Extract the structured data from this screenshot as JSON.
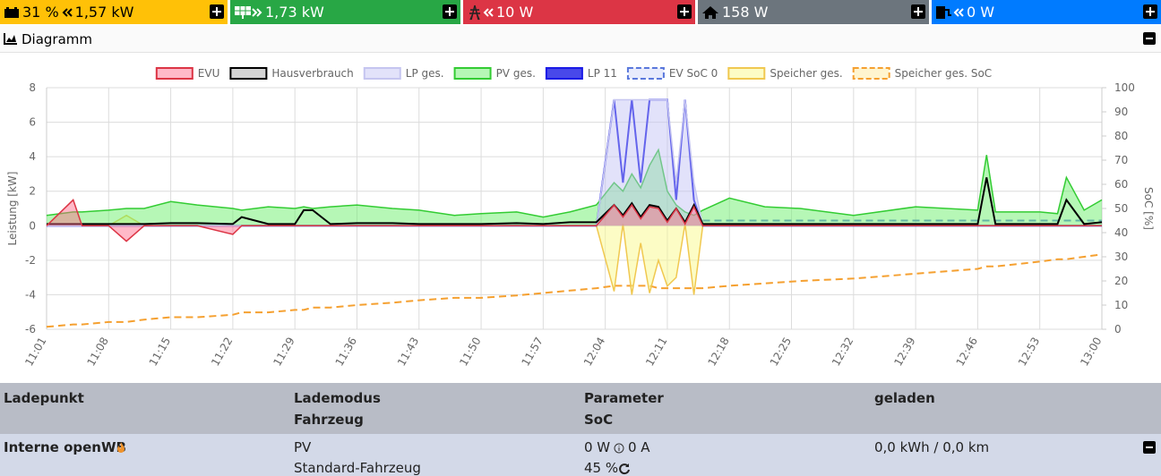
{
  "header": {
    "tiles": [
      {
        "soc": "31 %",
        "power": "1,57 kW"
      },
      {
        "power": "1,73 kW"
      },
      {
        "power": "10 W"
      },
      {
        "power": "158 W"
      },
      {
        "power": "0 W"
      }
    ]
  },
  "panel": {
    "title": "Diagramm"
  },
  "chart_data": {
    "type": "line",
    "ylabel": "Leistung [kW]",
    "y2label": "SoC [%]",
    "x": [
      "11:01",
      "11:04",
      "11:05",
      "11:08",
      "11:10",
      "11:12",
      "11:15",
      "11:18",
      "11:22",
      "11:23",
      "11:26",
      "11:29",
      "11:30",
      "11:31",
      "11:33",
      "11:36",
      "11:40",
      "11:43",
      "11:47",
      "11:50",
      "11:54",
      "11:57",
      "12:00",
      "12:03",
      "12:05",
      "12:06",
      "12:07",
      "12:08",
      "12:09",
      "12:10",
      "12:11",
      "12:12",
      "12:13",
      "12:14",
      "12:15",
      "12:18",
      "12:22",
      "12:26",
      "12:32",
      "12:39",
      "12:46",
      "12:47",
      "12:48",
      "12:53",
      "12:55",
      "12:56",
      "12:58",
      "13:00"
    ],
    "xlim": [
      "11:01",
      "13:00"
    ],
    "xticks": [
      "11:01",
      "11:08",
      "11:15",
      "11:22",
      "11:29",
      "11:36",
      "11:43",
      "11:50",
      "11:57",
      "12:04",
      "12:11",
      "12:18",
      "12:25",
      "12:32",
      "12:39",
      "12:46",
      "12:53",
      "13:00"
    ],
    "ylim": [
      -6,
      8
    ],
    "yticks": [
      -6,
      -4,
      -2,
      0,
      2,
      4,
      6,
      8
    ],
    "y2lim": [
      0,
      100
    ],
    "y2ticks": [
      0,
      10,
      20,
      30,
      40,
      50,
      60,
      70,
      80,
      90,
      100
    ],
    "grid": true,
    "legend": "top",
    "series": [
      {
        "name": "EVU",
        "color": "#dc3545",
        "fill": "rgba(255,99,132,0.45)",
        "area": true,
        "dash": false,
        "values": [
          0,
          1.5,
          0,
          0,
          -0.9,
          0,
          0,
          0,
          -0.5,
          0,
          0,
          0,
          0,
          0,
          0,
          0,
          0,
          0,
          0,
          0,
          0,
          0,
          0,
          0,
          1.2,
          0.5,
          1.2,
          0.4,
          1.1,
          1.0,
          0.2,
          1.0,
          0.1,
          1.1,
          0,
          0,
          0,
          0,
          0,
          0,
          0,
          0,
          0,
          0,
          0,
          0,
          0,
          0
        ]
      },
      {
        "name": "Hausverbrauch",
        "color": "#000000",
        "fill": "rgba(170,170,170,0.5)",
        "area": false,
        "dash": false,
        "values": [
          0.1,
          0.1,
          0.1,
          0.1,
          0.1,
          0.1,
          0.15,
          0.15,
          0.1,
          0.5,
          0.1,
          0.1,
          0.9,
          0.9,
          0.1,
          0.15,
          0.15,
          0.1,
          0.1,
          0.1,
          0.15,
          0.1,
          0.2,
          0.2,
          1.2,
          0.6,
          1.3,
          0.5,
          1.2,
          1.1,
          0.3,
          1.0,
          0.2,
          1.2,
          0.1,
          0.1,
          0.1,
          0.1,
          0.1,
          0.1,
          0.1,
          2.8,
          0.1,
          0.1,
          0.1,
          1.5,
          0.1,
          0.2
        ]
      },
      {
        "name": "LP ges.",
        "color": "#c5c5f0",
        "fill": "rgba(190,190,245,0.45)",
        "area": true,
        "dash": false,
        "values": [
          0,
          0,
          0,
          0,
          0,
          0,
          0,
          0,
          0,
          0,
          0,
          0,
          0,
          0,
          0,
          0,
          0,
          0,
          0,
          0,
          0,
          0,
          0,
          0,
          7.3,
          7.3,
          7.3,
          7.3,
          7.3,
          7.3,
          7.3,
          2.5,
          7.3,
          2.5,
          0,
          0,
          0,
          0,
          0,
          0,
          0,
          0,
          0,
          0,
          0,
          0,
          0,
          0
        ]
      },
      {
        "name": "PV ges.",
        "color": "#33cc33",
        "fill": "rgba(110,240,110,0.5)",
        "area": true,
        "dash": false,
        "values": [
          0.6,
          0.8,
          0.8,
          0.9,
          1.0,
          1.0,
          1.4,
          1.2,
          1.0,
          0.9,
          1.1,
          1.0,
          1.1,
          1.0,
          1.1,
          1.2,
          1.0,
          0.9,
          0.6,
          0.7,
          0.8,
          0.5,
          0.8,
          1.2,
          2.5,
          2.0,
          3.0,
          2.2,
          3.5,
          4.4,
          2.0,
          1.2,
          0.8,
          0.6,
          0.9,
          1.6,
          1.1,
          1.0,
          0.6,
          1.1,
          0.9,
          4.1,
          0.8,
          0.8,
          0.7,
          2.8,
          0.9,
          1.5
        ]
      },
      {
        "name": "LP 11",
        "color": "#1a1ae6",
        "fill": "rgba(40,40,230,0.85)",
        "area": false,
        "dash": false,
        "values": [
          0,
          0,
          0,
          0,
          0,
          0,
          0,
          0,
          0,
          0,
          0,
          0,
          0,
          0,
          0,
          0,
          0,
          0,
          0,
          0,
          0,
          0,
          0,
          0,
          7.3,
          2.5,
          7.3,
          2.5,
          7.3,
          7.3,
          7.3,
          1.5,
          7.3,
          1.5,
          0,
          0,
          0,
          0,
          0,
          0,
          0,
          0,
          0,
          0,
          0,
          0,
          0,
          0
        ]
      },
      {
        "name": "EV SoC 0",
        "color": "#5a78dc",
        "fill": "rgba(210,215,250,0.5)",
        "area": false,
        "dash": true,
        "axis": "y2",
        "values": [
          null,
          null,
          null,
          null,
          null,
          null,
          null,
          null,
          null,
          null,
          null,
          null,
          null,
          null,
          null,
          null,
          null,
          null,
          null,
          null,
          null,
          null,
          null,
          null,
          null,
          null,
          null,
          null,
          null,
          null,
          null,
          null,
          null,
          null,
          45,
          45,
          45,
          45,
          45,
          45,
          45,
          45,
          45,
          45,
          45,
          45,
          45,
          45
        ]
      },
      {
        "name": "Speicher ges.",
        "color": "#f0c850",
        "fill": "rgba(250,250,140,0.5)",
        "area": true,
        "dash": false,
        "values": [
          0,
          0,
          0,
          0,
          0.6,
          0,
          0,
          0,
          0,
          0,
          0,
          0,
          0,
          0,
          0,
          0,
          0,
          0,
          0,
          0,
          0,
          0,
          0,
          0,
          -3.8,
          0.1,
          -4.0,
          -1.0,
          -3.9,
          -2.0,
          -3.5,
          -3.0,
          0.1,
          -4.0,
          0,
          0,
          0,
          0,
          0,
          0,
          0,
          0,
          0,
          0,
          0,
          0,
          0,
          0
        ]
      },
      {
        "name": "Speicher ges. SoC",
        "color": "#f5a030",
        "fill": "rgba(255,235,160,0.5)",
        "area": false,
        "dash": true,
        "axis": "y2",
        "values": [
          1,
          2,
          2,
          3,
          3,
          4,
          5,
          5,
          6,
          7,
          7,
          8,
          8,
          9,
          9,
          10,
          11,
          12,
          13,
          13,
          14,
          15,
          16,
          17,
          18,
          18,
          18,
          18,
          18,
          17,
          17,
          17,
          17,
          17,
          17,
          18,
          19,
          20,
          21,
          23,
          25,
          26,
          26,
          28,
          29,
          29,
          30,
          31
        ]
      }
    ]
  },
  "table": {
    "header": [
      "Ladepunkt",
      "Lademodus",
      "Parameter",
      "geladen"
    ],
    "subheader": [
      "Fahrzeug",
      "SoC"
    ],
    "rows": [
      {
        "name": "Interne openWB",
        "mode": "PV",
        "power": "0 W",
        "current": "0 A",
        "charged": "0,0 kWh / 0,0 km",
        "vehicle": "Standard-Fahrzeug",
        "soc": "45 %"
      }
    ]
  }
}
